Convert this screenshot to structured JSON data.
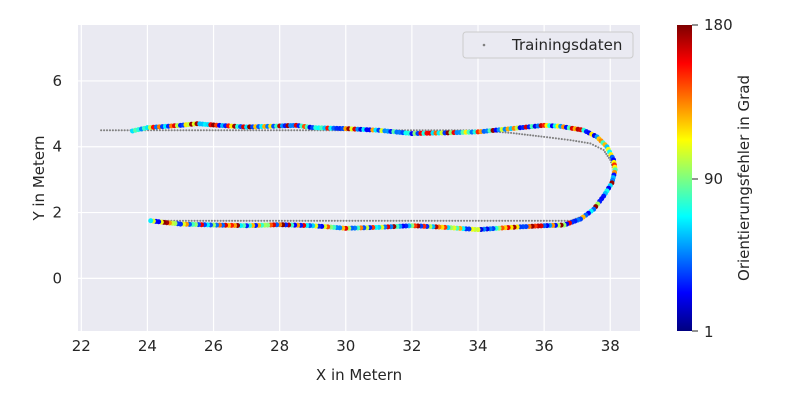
{
  "chart_data": {
    "type": "scatter",
    "xlabel": "X in Metern",
    "ylabel": "Y in Metern",
    "xlim": [
      21.9,
      38.9
    ],
    "ylim": [
      -1.6,
      7.7
    ],
    "xticks": [
      22,
      24,
      26,
      28,
      30,
      32,
      34,
      36,
      38
    ],
    "yticks": [
      0,
      2,
      4,
      6
    ],
    "grid": true,
    "legend": {
      "position": "top-right",
      "entries": [
        "Trainingsdaten"
      ]
    },
    "colorbar": {
      "label": "Orientierungsfehler in Grad",
      "colormap": "jet",
      "min": 1,
      "max": 180,
      "ticks": [
        "1",
        "90",
        "180"
      ]
    },
    "colors": {
      "background": "#eaeaf2",
      "grid": "#ffffff",
      "training": "#808080"
    },
    "series": [
      {
        "name": "Trainingsdaten",
        "style": "dotted-gray",
        "path": [
          [
            22.6,
            4.5
          ],
          [
            25.0,
            4.5
          ],
          [
            28.0,
            4.5
          ],
          [
            31.0,
            4.5
          ],
          [
            34.0,
            4.5
          ],
          [
            35.0,
            4.42
          ],
          [
            36.0,
            4.3
          ],
          [
            36.8,
            4.2
          ],
          [
            37.4,
            4.1
          ],
          [
            37.8,
            3.9
          ],
          [
            38.0,
            3.6
          ],
          [
            38.1,
            3.3
          ],
          [
            38.05,
            3.0
          ],
          [
            37.9,
            2.6
          ],
          [
            37.6,
            2.2
          ],
          [
            37.2,
            1.9
          ],
          [
            36.8,
            1.75
          ],
          [
            35.0,
            1.75
          ],
          [
            31.0,
            1.75
          ],
          [
            27.0,
            1.75
          ],
          [
            24.2,
            1.75
          ]
        ]
      },
      {
        "name": "",
        "style": "colored",
        "path": [
          [
            23.55,
            4.48
          ],
          [
            24.0,
            4.58
          ],
          [
            25.0,
            4.65
          ],
          [
            25.5,
            4.7
          ],
          [
            26.0,
            4.66
          ],
          [
            27.0,
            4.6
          ],
          [
            28.0,
            4.63
          ],
          [
            28.5,
            4.65
          ],
          [
            29.0,
            4.58
          ],
          [
            30.0,
            4.55
          ],
          [
            31.0,
            4.5
          ],
          [
            32.0,
            4.4
          ],
          [
            33.0,
            4.42
          ],
          [
            34.0,
            4.45
          ],
          [
            35.0,
            4.55
          ],
          [
            36.0,
            4.65
          ],
          [
            36.5,
            4.62
          ],
          [
            37.2,
            4.5
          ],
          [
            37.6,
            4.3
          ],
          [
            37.9,
            4.0
          ],
          [
            38.1,
            3.6
          ],
          [
            38.15,
            3.3
          ],
          [
            38.05,
            2.9
          ],
          [
            37.8,
            2.5
          ],
          [
            37.5,
            2.1
          ],
          [
            37.1,
            1.8
          ],
          [
            36.6,
            1.62
          ],
          [
            36.0,
            1.6
          ],
          [
            35.0,
            1.55
          ],
          [
            34.0,
            1.48
          ],
          [
            33.0,
            1.55
          ],
          [
            32.0,
            1.6
          ],
          [
            31.0,
            1.55
          ],
          [
            30.0,
            1.52
          ],
          [
            29.0,
            1.6
          ],
          [
            28.0,
            1.63
          ],
          [
            27.0,
            1.6
          ],
          [
            26.0,
            1.62
          ],
          [
            25.0,
            1.65
          ],
          [
            24.5,
            1.7
          ],
          [
            24.1,
            1.75
          ]
        ]
      }
    ]
  }
}
